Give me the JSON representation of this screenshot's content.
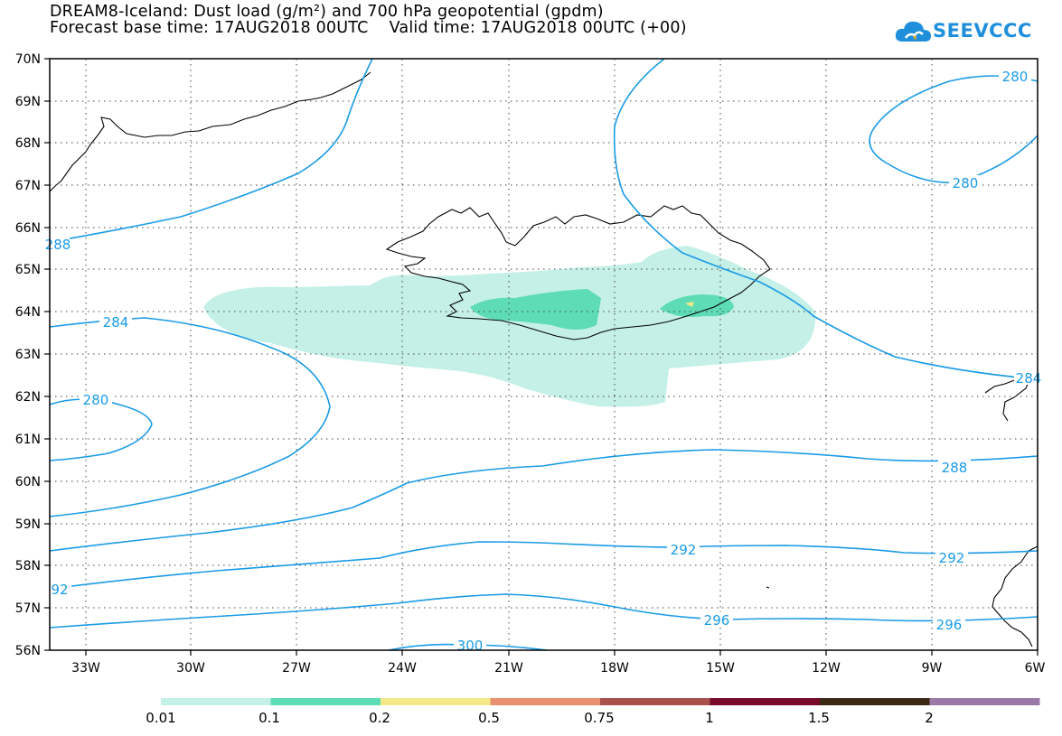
{
  "title": {
    "line1": "DREAM8-Iceland: Dust load (g/m²) and 700 hPa geopotential (gpdm)",
    "line2": "Forecast base time: 17AUG2018 00UTC    Valid time: 17AUG2018 00UTC (+00)"
  },
  "logo": {
    "text": "SEEVCCC",
    "icon": "cloud-icon",
    "color": "#1f8fdc"
  },
  "axes": {
    "lat_labels": [
      "70N",
      "69N",
      "68N",
      "67N",
      "66N",
      "65N",
      "64N",
      "63N",
      "62N",
      "61N",
      "60N",
      "59N",
      "58N",
      "57N",
      "56N"
    ],
    "lon_labels": [
      "33W",
      "30W",
      "27W",
      "24W",
      "21W",
      "18W",
      "15W",
      "12W",
      "9W",
      "6W"
    ]
  },
  "contours": {
    "color": "#1a9be6",
    "labels": [
      "280",
      "280",
      "288",
      "284",
      "280",
      "284",
      "288",
      "292",
      "292",
      "92",
      "296",
      "296",
      "300"
    ]
  },
  "legend": {
    "thresholds": [
      "0.01",
      "0.1",
      "0.2",
      "0.5",
      "0.75",
      "1",
      "1.5",
      "2"
    ],
    "colors": [
      "#c4f0e8",
      "#5edcb5",
      "#f5e88a",
      "#e89070",
      "#a8504a",
      "#7a0a2a",
      "#3a2a14",
      "#9a78a8"
    ]
  },
  "dust_colors": {
    "low": "#c4f0e8",
    "mid": "#5edcb5",
    "high": "#f5e88a"
  }
}
